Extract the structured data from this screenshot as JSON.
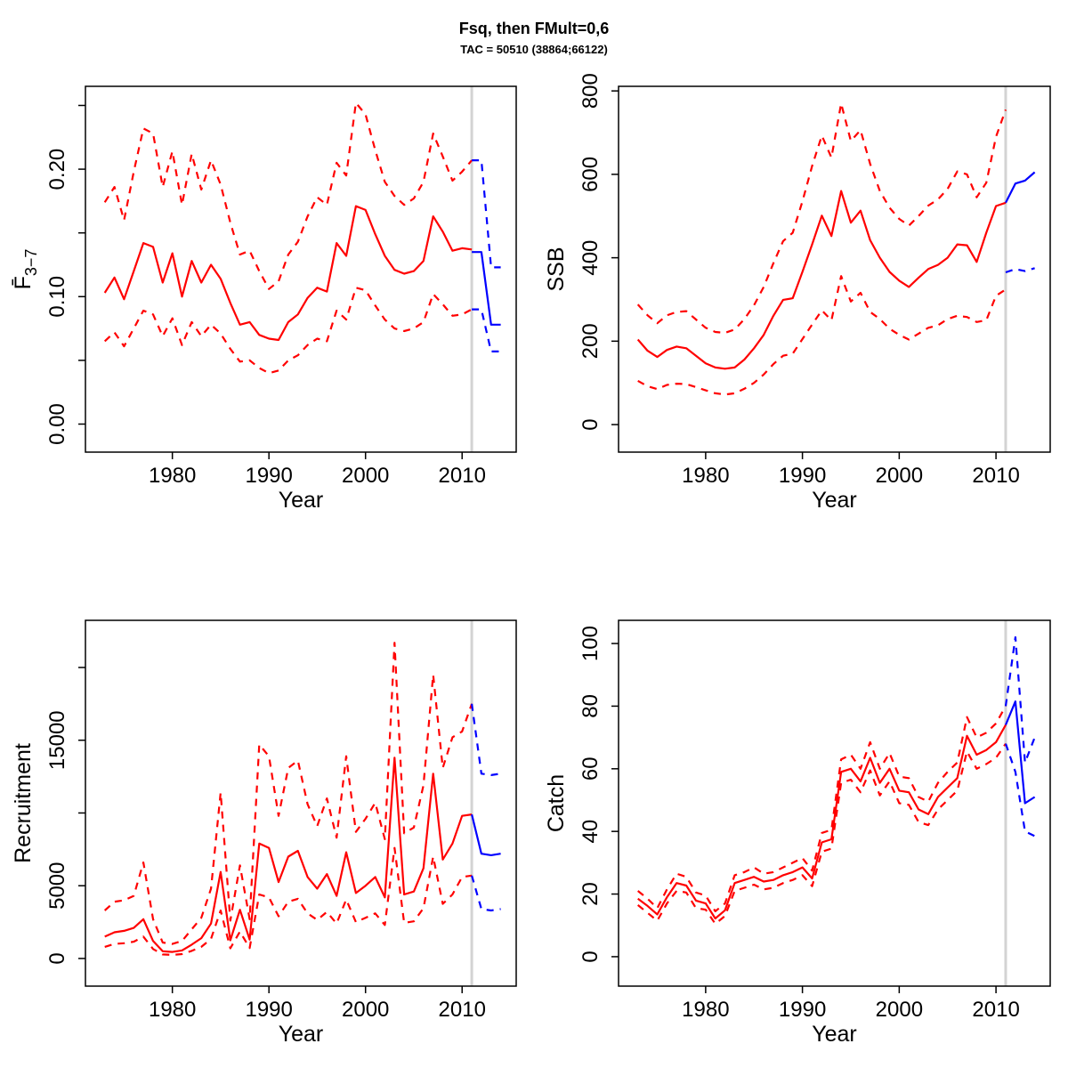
{
  "title": "Fsq, then FMult=0,6",
  "subtitle": "TAC = 50510 (38864;66122)",
  "colors": {
    "historic": "#ff0000",
    "forecast": "#0000ff",
    "divider": "#d3d3d3",
    "box": "#000000"
  },
  "forecast_start_year": 2011,
  "chart_data": [
    {
      "id": "fbar",
      "type": "line",
      "panel": "top-left",
      "xlabel": "Year",
      "ylabel": "Fbar(3-7)",
      "ylabel_main": "F̄",
      "ylabel_sub": "3−7",
      "xlim": [
        1971.0,
        2015.6
      ],
      "ylim": [
        -0.022,
        0.265
      ],
      "x_ticks": [
        1980,
        1990,
        2000,
        2010
      ],
      "y_ticks": [
        0,
        0.05,
        0.1,
        0.15,
        0.2,
        0.25
      ],
      "y_tick_labels": [
        "0.00",
        "",
        "0.10",
        "",
        "0.20",
        ""
      ],
      "divider_year": 2011,
      "legend": "none",
      "grid": false,
      "series": [
        {
          "name": "median",
          "style": "solid",
          "color": "#ff0000",
          "x_start": 1973,
          "values": [
            0.103,
            0.115,
            0.098,
            0.12,
            0.142,
            0.139,
            0.111,
            0.134,
            0.1,
            0.128,
            0.111,
            0.125,
            0.114,
            0.095,
            0.078,
            0.08,
            0.07,
            0.067,
            0.066,
            0.08,
            0.086,
            0.099,
            0.107,
            0.104,
            0.142,
            0.132,
            0.171,
            0.168,
            0.149,
            0.132,
            0.121,
            0.118,
            0.12,
            0.128,
            0.163,
            0.151,
            0.136,
            0.138,
            0.137
          ]
        },
        {
          "name": "upper-ci",
          "style": "dashed",
          "color": "#ff0000",
          "x_start": 1973,
          "values": [
            0.174,
            0.186,
            0.16,
            0.198,
            0.232,
            0.228,
            0.186,
            0.214,
            0.172,
            0.212,
            0.184,
            0.207,
            0.188,
            0.158,
            0.133,
            0.136,
            0.12,
            0.106,
            0.112,
            0.133,
            0.143,
            0.163,
            0.178,
            0.172,
            0.205,
            0.195,
            0.252,
            0.243,
            0.215,
            0.19,
            0.179,
            0.172,
            0.177,
            0.19,
            0.228,
            0.21,
            0.191,
            0.198,
            0.207
          ]
        },
        {
          "name": "lower-ci",
          "style": "dashed",
          "color": "#ff0000",
          "x_start": 1973,
          "values": [
            0.065,
            0.072,
            0.061,
            0.075,
            0.089,
            0.086,
            0.069,
            0.083,
            0.062,
            0.08,
            0.069,
            0.078,
            0.071,
            0.059,
            0.049,
            0.05,
            0.044,
            0.04,
            0.042,
            0.05,
            0.054,
            0.062,
            0.067,
            0.065,
            0.089,
            0.082,
            0.107,
            0.105,
            0.093,
            0.082,
            0.075,
            0.073,
            0.075,
            0.08,
            0.102,
            0.094,
            0.085,
            0.086,
            0.09
          ]
        },
        {
          "name": "forecast-median",
          "style": "solid",
          "color": "#0000ff",
          "x_start": 2011,
          "values": [
            0.135,
            0.135,
            0.078,
            0.078
          ]
        },
        {
          "name": "forecast-upper-ci",
          "style": "dashed",
          "color": "#0000ff",
          "x_start": 2011,
          "values": [
            0.207,
            0.207,
            0.123,
            0.123
          ]
        },
        {
          "name": "forecast-lower-ci",
          "style": "dashed",
          "color": "#0000ff",
          "x_start": 2011,
          "values": [
            0.09,
            0.09,
            0.057,
            0.057
          ]
        }
      ]
    },
    {
      "id": "ssb",
      "type": "line",
      "panel": "top-right",
      "xlabel": "Year",
      "ylabel": "SSB",
      "xlim": [
        1971.0,
        2015.6
      ],
      "ylim": [
        -66,
        811
      ],
      "x_ticks": [
        1980,
        1990,
        2000,
        2010
      ],
      "y_ticks": [
        0,
        200,
        400,
        600,
        800
      ],
      "y_tick_labels": [
        "0",
        "200",
        "400",
        "600",
        "800"
      ],
      "divider_year": 2011,
      "legend": "none",
      "grid": false,
      "series": [
        {
          "name": "median",
          "style": "solid",
          "color": "#ff0000",
          "x_start": 1973,
          "values": [
            204,
            177,
            162,
            179,
            187,
            183,
            165,
            147,
            137,
            134,
            137,
            156,
            183,
            215,
            261,
            299,
            303,
            366,
            432,
            501,
            452,
            560,
            484,
            513,
            442,
            400,
            366,
            345,
            330,
            352,
            373,
            383,
            400,
            432,
            430,
            390,
            460,
            524,
            532
          ]
        },
        {
          "name": "upper-ci",
          "style": "dashed",
          "color": "#ff0000",
          "x_start": 1973,
          "values": [
            288,
            262,
            243,
            262,
            270,
            272,
            252,
            232,
            222,
            220,
            228,
            253,
            286,
            330,
            387,
            440,
            460,
            535,
            620,
            693,
            640,
            770,
            680,
            706,
            625,
            560,
            520,
            493,
            477,
            500,
            525,
            540,
            565,
            607,
            600,
            545,
            580,
            690,
            755
          ]
        },
        {
          "name": "lower-ci",
          "style": "dashed",
          "color": "#ff0000",
          "x_start": 1973,
          "values": [
            105,
            92,
            85,
            95,
            98,
            97,
            90,
            82,
            75,
            72,
            75,
            86,
            100,
            120,
            145,
            165,
            170,
            205,
            240,
            274,
            250,
            356,
            295,
            316,
            270,
            253,
            230,
            215,
            204,
            218,
            232,
            238,
            253,
            261,
            258,
            246,
            250,
            309,
            324
          ]
        },
        {
          "name": "forecast-median",
          "style": "solid",
          "color": "#0000ff",
          "x_start": 2011,
          "values": [
            532,
            578,
            585,
            605
          ]
        },
        {
          "name": "forecast-lower-ci",
          "style": "dashed",
          "color": "#0000ff",
          "x_start": 2011,
          "values": [
            365,
            373,
            368,
            375
          ]
        }
      ]
    },
    {
      "id": "recruitment",
      "type": "line",
      "panel": "bottom-left",
      "xlabel": "Year",
      "ylabel": "Recruitment",
      "xlim": [
        1971.0,
        2015.6
      ],
      "ylim": [
        -1900,
        23240
      ],
      "x_ticks": [
        1980,
        1990,
        2000,
        2010
      ],
      "y_ticks": [
        0,
        5000,
        10000,
        15000,
        20000
      ],
      "y_tick_labels": [
        "0",
        "5000",
        "",
        "15000",
        ""
      ],
      "divider_year": 2011,
      "legend": "none",
      "grid": false,
      "series": [
        {
          "name": "median",
          "style": "solid",
          "color": "#ff0000",
          "x_start": 1973,
          "values": [
            1500,
            1800,
            1900,
            2100,
            2700,
            1200,
            500,
            450,
            550,
            950,
            1400,
            2400,
            5950,
            1250,
            3350,
            1300,
            7900,
            7600,
            5250,
            7000,
            7400,
            5600,
            4800,
            5800,
            4300,
            7300,
            4500,
            5000,
            5600,
            4200,
            13800,
            4400,
            4600,
            6200,
            12700,
            6800,
            7900,
            9800,
            9900
          ]
        },
        {
          "name": "upper-ci",
          "style": "dashed",
          "color": "#ff0000",
          "x_start": 1973,
          "values": [
            3300,
            3900,
            4000,
            4300,
            6600,
            2700,
            1100,
            1000,
            1200,
            2000,
            2800,
            4800,
            11400,
            2600,
            6400,
            2700,
            14700,
            13900,
            9800,
            13100,
            13600,
            10600,
            9100,
            11000,
            8300,
            13900,
            8700,
            9600,
            10700,
            8200,
            21700,
            8600,
            9000,
            11900,
            19500,
            13100,
            15200,
            15600,
            17500
          ]
        },
        {
          "name": "lower-ci",
          "style": "dashed",
          "color": "#ff0000",
          "x_start": 1973,
          "values": [
            800,
            1000,
            1050,
            1150,
            1500,
            650,
            280,
            250,
            300,
            520,
            800,
            1350,
            3300,
            700,
            1850,
            720,
            4400,
            4200,
            2900,
            3900,
            4100,
            3100,
            2650,
            3200,
            2400,
            4050,
            2500,
            2800,
            3100,
            2300,
            7600,
            2450,
            2550,
            3450,
            7000,
            3750,
            4400,
            5600,
            5700
          ]
        },
        {
          "name": "forecast-median",
          "style": "solid",
          "color": "#0000ff",
          "x_start": 2011,
          "values": [
            9900,
            7200,
            7100,
            7200
          ]
        },
        {
          "name": "forecast-upper-ci",
          "style": "dashed",
          "color": "#0000ff",
          "x_start": 2011,
          "values": [
            17500,
            12700,
            12600,
            12700
          ]
        },
        {
          "name": "forecast-lower-ci",
          "style": "dashed",
          "color": "#0000ff",
          "x_start": 2011,
          "values": [
            5700,
            3400,
            3300,
            3400
          ]
        }
      ]
    },
    {
      "id": "catch",
      "type": "line",
      "panel": "bottom-right",
      "xlabel": "Year",
      "ylabel": "Catch",
      "xlim": [
        1971.0,
        2015.6
      ],
      "ylim": [
        -9.4,
        107.4
      ],
      "x_ticks": [
        1980,
        1990,
        2000,
        2010
      ],
      "y_ticks": [
        0,
        20,
        40,
        60,
        80,
        100
      ],
      "y_tick_labels": [
        "0",
        "20",
        "40",
        "60",
        "80",
        "100"
      ],
      "divider_year": 2011,
      "legend": "none",
      "grid": false,
      "series": [
        {
          "name": "median",
          "style": "solid",
          "color": "#ff0000",
          "x_start": 1973,
          "values": [
            18.5,
            16.2,
            13.5,
            19,
            23.5,
            22.7,
            17.9,
            17,
            12.2,
            14.8,
            23.5,
            24.5,
            25.5,
            24,
            24.5,
            26,
            27,
            28.5,
            25,
            36.5,
            37.5,
            59,
            60,
            56,
            63.5,
            55.5,
            60,
            53,
            52.5,
            47,
            45.5,
            51,
            54,
            57,
            70.5,
            64.5,
            66,
            68.5,
            74
          ]
        },
        {
          "name": "upper-ci",
          "style": "dashed",
          "color": "#ff0000",
          "x_start": 1973,
          "values": [
            21,
            18.5,
            15.5,
            21.5,
            26.5,
            25.5,
            20.5,
            19.5,
            14.5,
            17,
            26,
            27,
            28.5,
            26.5,
            27,
            28.5,
            30,
            31.5,
            27.5,
            39.5,
            40.5,
            63,
            64.5,
            60,
            68.5,
            60,
            65,
            57.5,
            57,
            51,
            49.5,
            55.5,
            59,
            62,
            76.5,
            70,
            71.5,
            74.5,
            80
          ]
        },
        {
          "name": "lower-ci",
          "style": "dashed",
          "color": "#ff0000",
          "x_start": 1973,
          "values": [
            16.5,
            14,
            11.5,
            17,
            21,
            20.5,
            15.5,
            15,
            10.5,
            13,
            21,
            22,
            23,
            21.5,
            22,
            23.5,
            24.5,
            26,
            22.5,
            33.5,
            34.5,
            55.5,
            56.5,
            52.5,
            59.5,
            51.5,
            56,
            49,
            48.5,
            43,
            42,
            47,
            50,
            53,
            65.5,
            60,
            61.5,
            63.5,
            68
          ]
        },
        {
          "name": "forecast-median",
          "style": "solid",
          "color": "#0000ff",
          "x_start": 2011,
          "values": [
            74,
            81.5,
            49,
            51
          ]
        },
        {
          "name": "forecast-upper-ci",
          "style": "dashed",
          "color": "#0000ff",
          "x_start": 2011,
          "values": [
            80,
            102,
            62,
            70
          ]
        },
        {
          "name": "forecast-lower-ci",
          "style": "dashed",
          "color": "#0000ff",
          "x_start": 2011,
          "values": [
            68,
            59,
            40,
            38.5
          ]
        }
      ]
    }
  ]
}
